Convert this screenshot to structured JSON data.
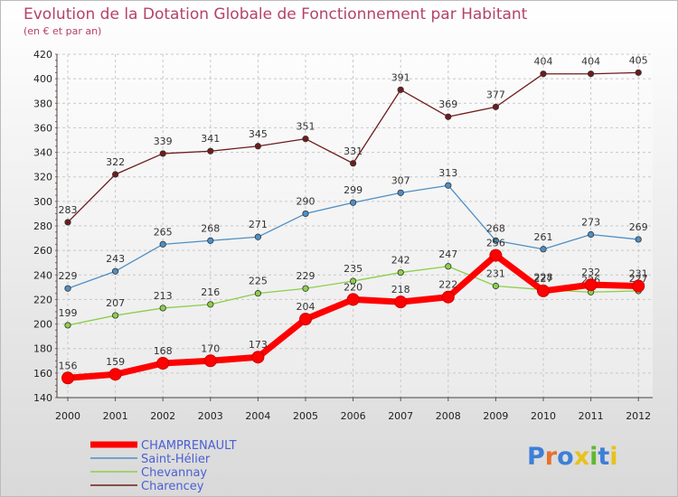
{
  "title": "Evolution de la Dotation Globale de Fonctionnement par Habitant",
  "subtitle": "(en € et par an)",
  "logo_text": "Proxiti",
  "chart_data": {
    "type": "line",
    "title": "Evolution de la Dotation Globale de Fonctionnement par Habitant",
    "subtitle": "(en € et par an)",
    "xlabel": "",
    "ylabel": "",
    "x": [
      "2000",
      "2001",
      "2002",
      "2003",
      "2004",
      "2005",
      "2006",
      "2007",
      "2008",
      "2009",
      "2010",
      "2011",
      "2012"
    ],
    "ylim": [
      140,
      420
    ],
    "yticks": [
      140,
      160,
      180,
      200,
      220,
      240,
      260,
      280,
      300,
      320,
      340,
      360,
      380,
      400,
      420
    ],
    "grid": true,
    "legend_position": "bottom-left",
    "series": [
      {
        "name": "CHAMPRENAULT",
        "color": "#ff0000",
        "values": [
          156,
          159,
          168,
          170,
          173,
          204,
          220,
          218,
          222,
          256,
          227,
          232,
          231
        ]
      },
      {
        "name": "Saint-Hélier",
        "color": "#4e8fc4",
        "values": [
          229,
          243,
          265,
          268,
          271,
          290,
          299,
          307,
          313,
          268,
          261,
          273,
          269
        ]
      },
      {
        "name": "Chevannay",
        "color": "#8ccf4a",
        "values": [
          199,
          207,
          213,
          216,
          225,
          229,
          235,
          242,
          247,
          231,
          228,
          226,
          227
        ]
      },
      {
        "name": "Charencey",
        "color": "#6e1c1c",
        "values": [
          283,
          322,
          339,
          341,
          345,
          351,
          331,
          391,
          369,
          377,
          404,
          404,
          405
        ]
      }
    ]
  }
}
